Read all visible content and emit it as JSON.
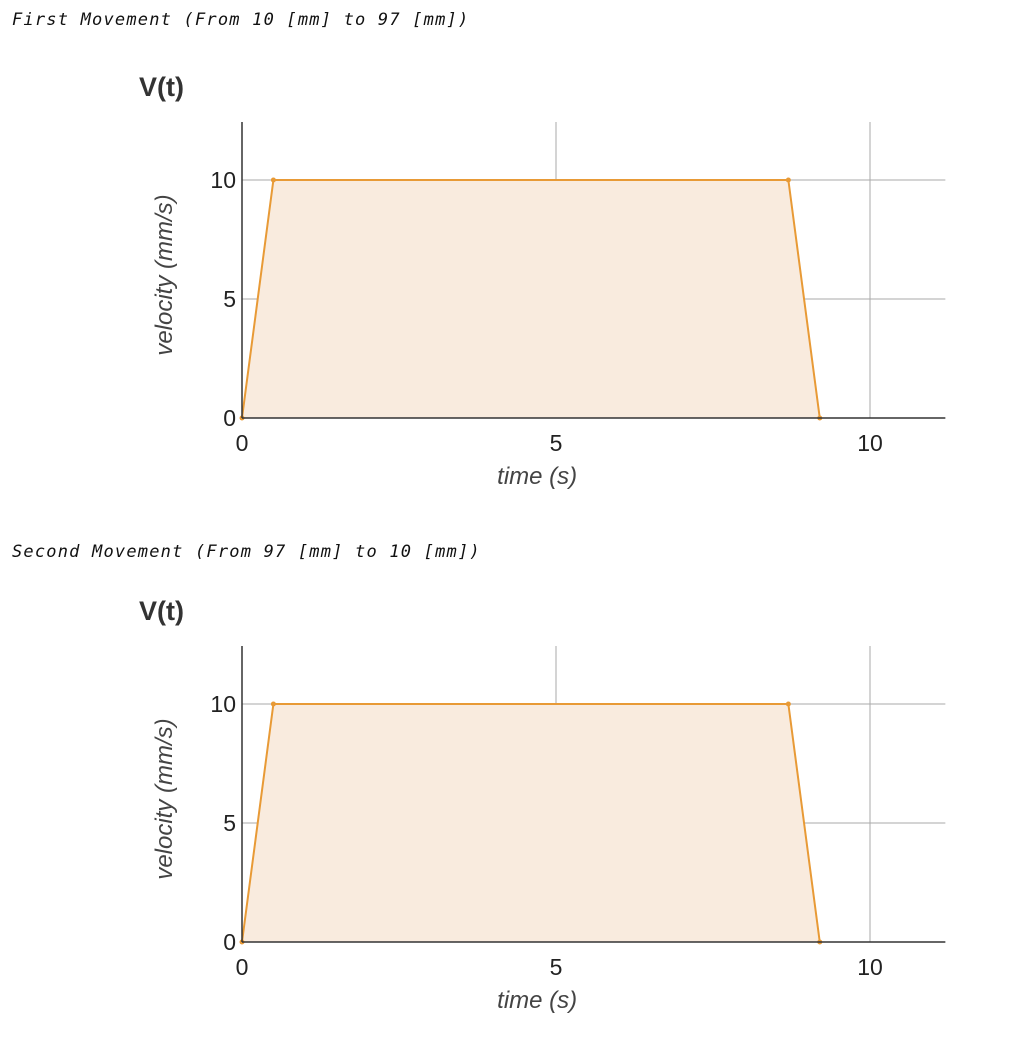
{
  "headings": [
    "First Movement (From 10 [mm] to 97 [mm])",
    "Second Movement (From 97 [mm] to 10 [mm])"
  ],
  "colors": {
    "line": "#e89a36",
    "fill": "#f9ebde",
    "grid": "#aaaaaa",
    "axis": "#333333"
  },
  "chart_data": [
    {
      "type": "area",
      "title": "V(t)",
      "xlabel": "time (s)",
      "ylabel": "velocity (mm/s)",
      "xlim": [
        0,
        11.2
      ],
      "ylim": [
        0,
        12.5
      ],
      "xticks": [
        "0",
        "5",
        "10"
      ],
      "yticks": [
        "0",
        "5",
        "10"
      ],
      "grid": true,
      "series": [
        {
          "x": [
            0,
            0.5,
            8.7,
            9.2
          ],
          "y": [
            0,
            10,
            10,
            0
          ]
        }
      ]
    },
    {
      "type": "area",
      "title": "V(t)",
      "xlabel": "time (s)",
      "ylabel": "velocity (mm/s)",
      "xlim": [
        0,
        11.2
      ],
      "ylim": [
        0,
        12.5
      ],
      "xticks": [
        "0",
        "5",
        "10"
      ],
      "yticks": [
        "0",
        "5",
        "10"
      ],
      "grid": true,
      "series": [
        {
          "x": [
            0,
            0.5,
            8.7,
            9.2
          ],
          "y": [
            0,
            10,
            10,
            0
          ]
        }
      ]
    }
  ]
}
